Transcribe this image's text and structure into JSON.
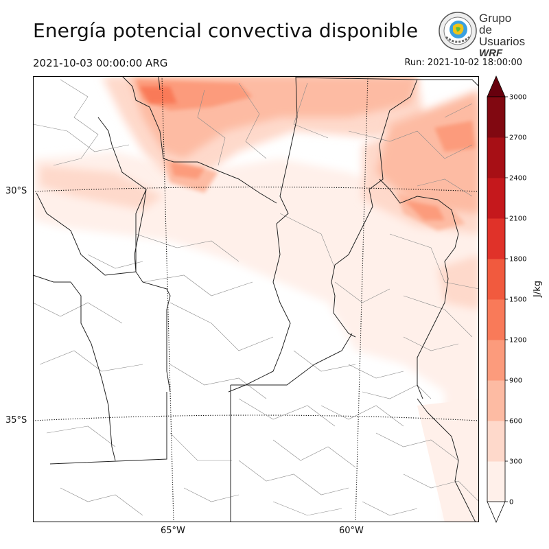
{
  "header": {
    "title": "Energía potencial convectiva disponible",
    "valid_time": "2021-10-03 00:00:00 ARG",
    "run_time": "Run: 2021-10-02 18:00:00"
  },
  "logo": {
    "line1": "Grupo de",
    "line2": "Usuarios",
    "line3": "WRF"
  },
  "map": {
    "lat_labels": [
      "30°S",
      "35°S"
    ],
    "lon_labels": [
      "65°W",
      "60°W"
    ]
  },
  "colorbar": {
    "unit": "J/kg",
    "ticks": [
      "0",
      "300",
      "600",
      "900",
      "1200",
      "1500",
      "1800",
      "2100",
      "2400",
      "2700",
      "3000"
    ],
    "colors": [
      "#fff0ea",
      "#fed9cb",
      "#fdbba3",
      "#fc9b7c",
      "#f97a59",
      "#f15a3e",
      "#e03229",
      "#c5181c",
      "#a70f15",
      "#810811"
    ]
  }
}
